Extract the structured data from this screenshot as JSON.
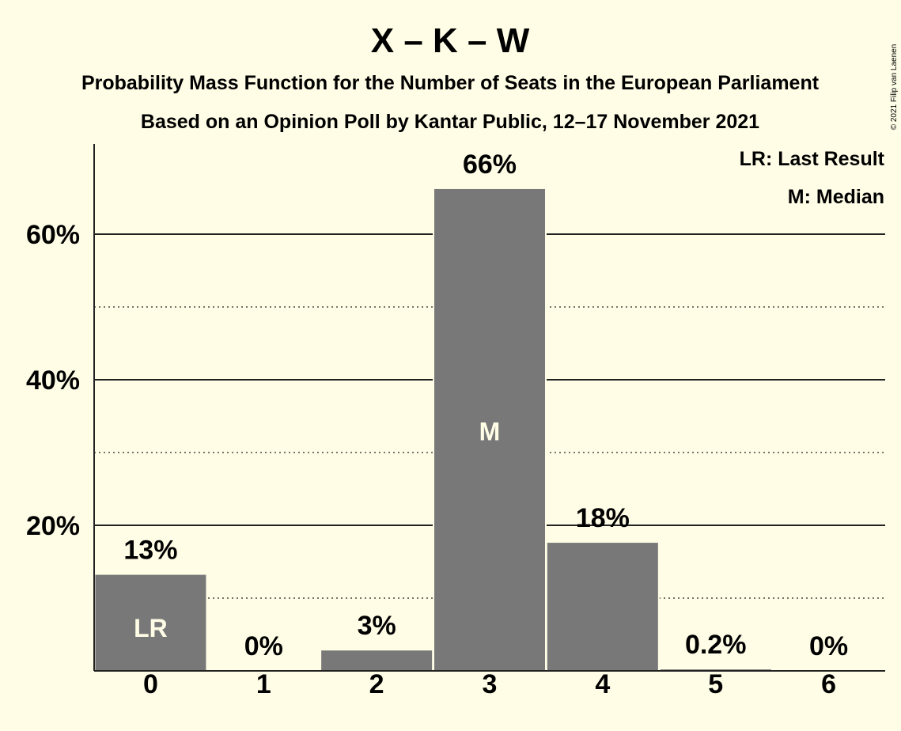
{
  "chart_data": {
    "type": "bar",
    "title": "X – K – W",
    "subtitle_1": "Probability Mass Function for the Number of Seats in the European Parliament",
    "subtitle_2": "Based on an Opinion Poll by Kantar Public, 12–17 November 2021",
    "categories": [
      "0",
      "1",
      "2",
      "3",
      "4",
      "5",
      "6"
    ],
    "values": [
      13.2,
      0,
      2.8,
      66.2,
      17.6,
      0.2,
      0
    ],
    "value_labels": [
      "13%",
      "0%",
      "3%",
      "66%",
      "18%",
      "0.2%",
      "0%"
    ],
    "bar_annotations": [
      "LR",
      "",
      "",
      "M",
      "",
      "",
      ""
    ],
    "ylim": [
      0,
      72
    ],
    "y_major_ticks": [
      20,
      40,
      60
    ],
    "y_tick_labels": [
      "20%",
      "40%",
      "60%"
    ],
    "y_minor_gridlines": [
      10,
      30,
      50
    ],
    "legend": [
      "LR: Last Result",
      "M: Median"
    ],
    "legend_placement": "top-right",
    "bar_color": "#787878",
    "background_color": "#fffde6"
  },
  "copyright": "© 2021 Filip van Laenen"
}
